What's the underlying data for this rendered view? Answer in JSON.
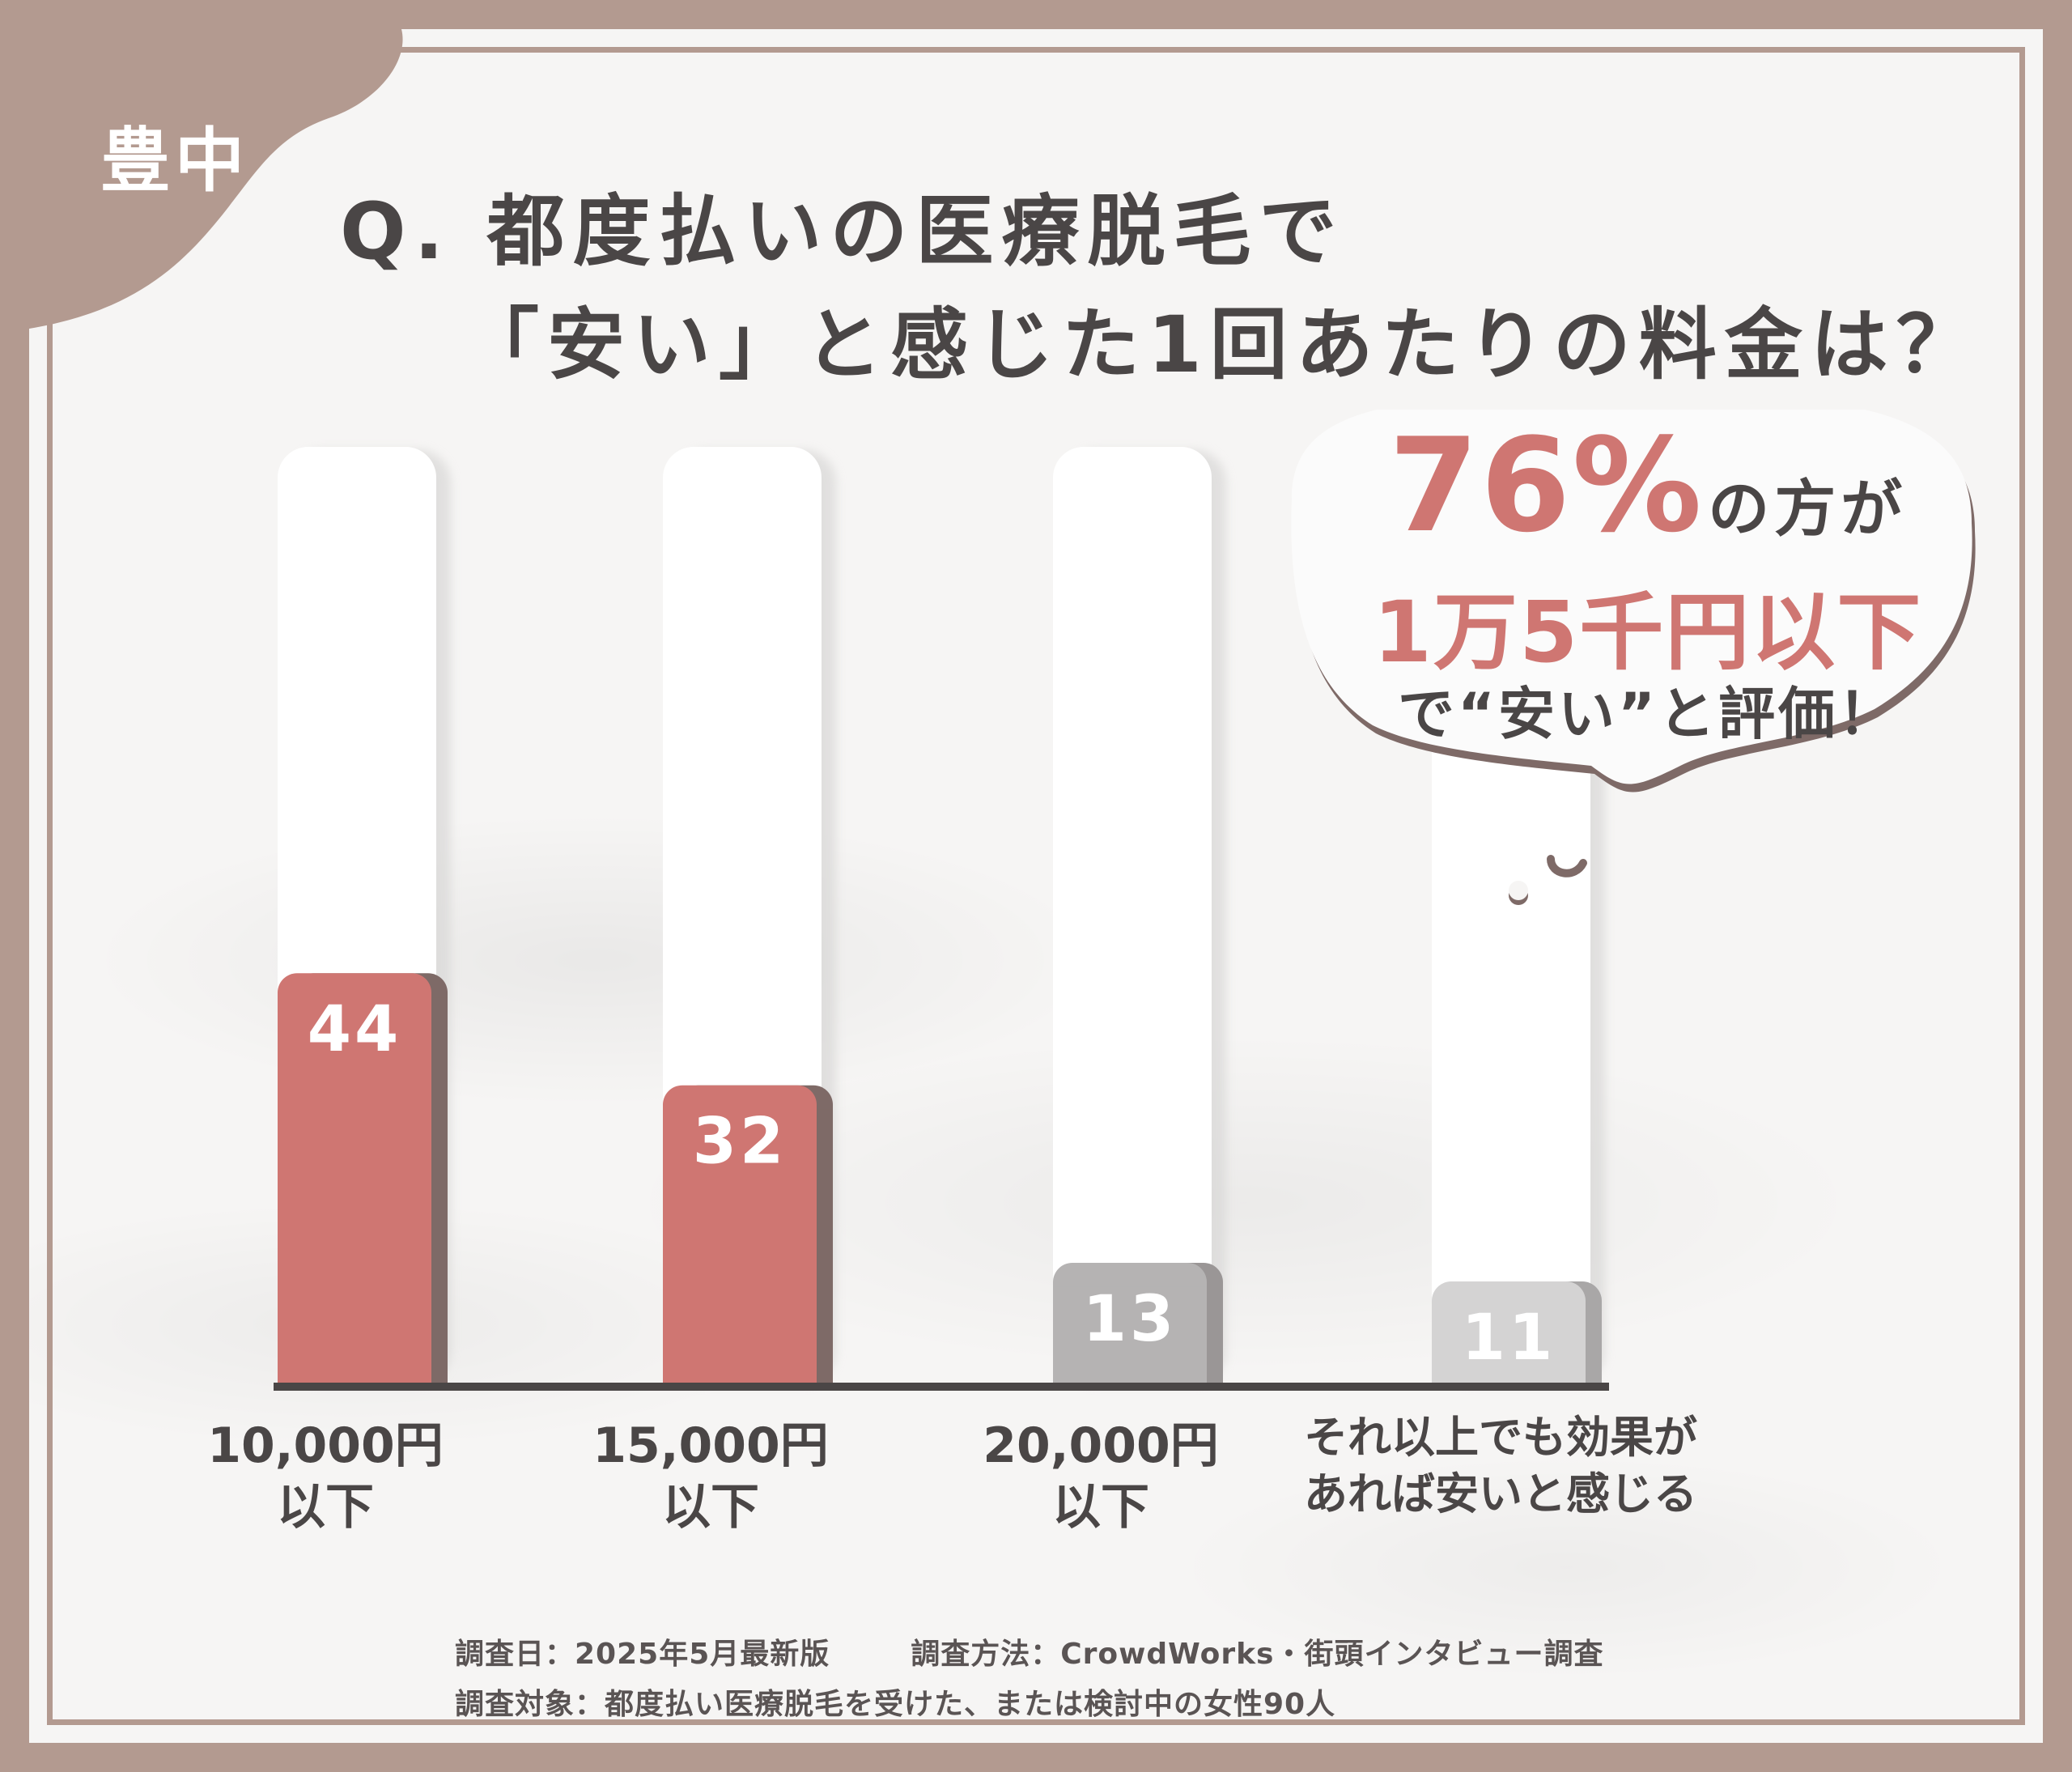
{
  "corner_label": "豊中",
  "question": {
    "line1": "Q. 都度払いの医療脱毛で",
    "line2": "「安い」と感じた1回あたりの料金は？"
  },
  "callout": {
    "percent": "76%",
    "percent_suffix": "の方が",
    "line2": "1万5千円以下",
    "line3": "で“安い”と評価！"
  },
  "chart_data": {
    "type": "bar",
    "categories": [
      "10,000円\n以下",
      "15,000円\n以下",
      "20,000円\n以下",
      "それ以上でも効果が\nあれば安いと感じる"
    ],
    "values": [
      44,
      32,
      13,
      11
    ],
    "data_labels": [
      "44",
      "32",
      "13",
      "11"
    ],
    "ylim": [
      0,
      100
    ],
    "grid": false,
    "colors": [
      "#cf7672",
      "#cf7672",
      "#b5b3b3",
      "#d4d3d3"
    ],
    "shadow_colors": [
      "#7e6a67",
      "#7e6a67",
      "#9a9696",
      "#a9a7a7"
    ]
  },
  "footer": {
    "date": "調査日：2025年5月最新版",
    "method": "調査方法：CrowdWorks・街頭インタビュー調査",
    "target": "調査対象：都度払い医療脱毛を受けた、または検討中の女性90人"
  }
}
